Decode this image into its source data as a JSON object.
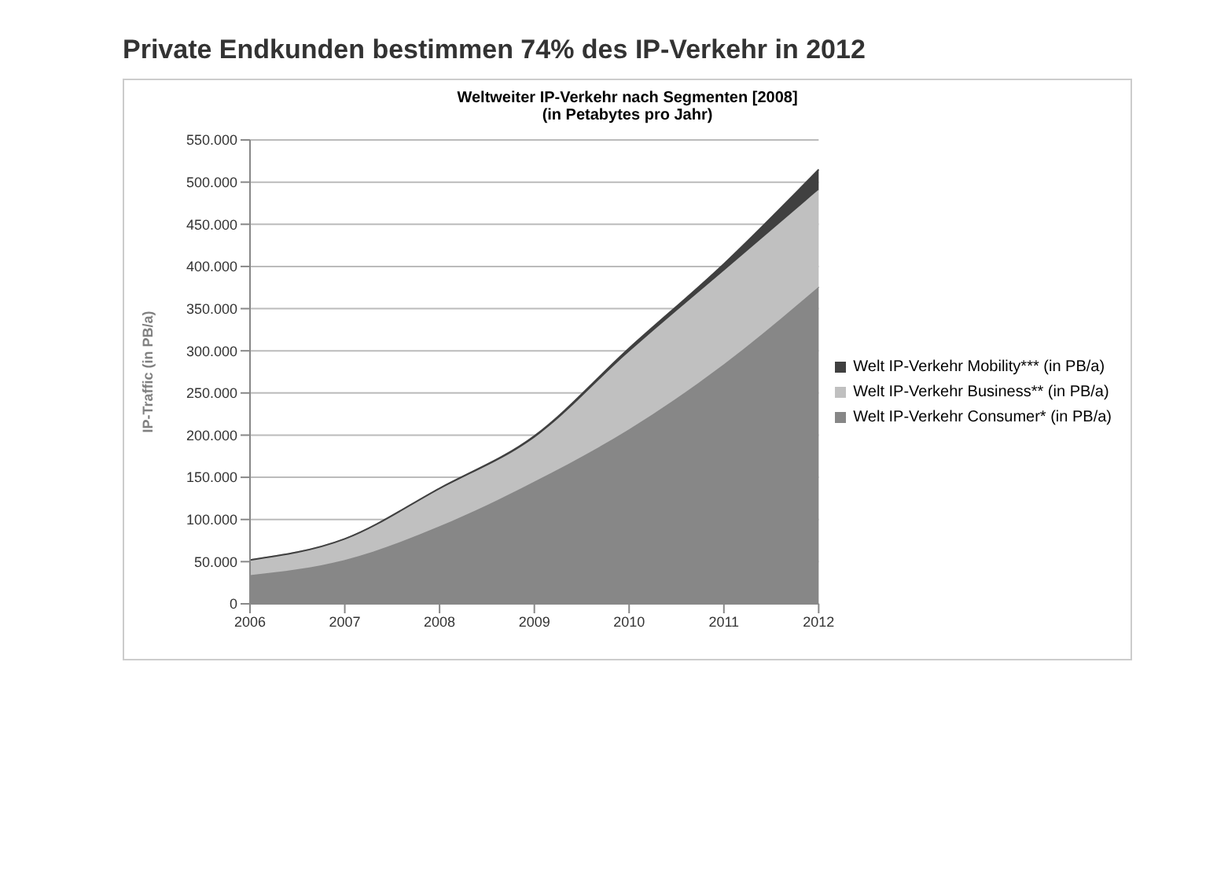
{
  "chart_data": {
    "type": "area",
    "stacked": true,
    "title": "Private Endkunden bestimmen 74% des IP-Verkehr in 2012",
    "subtitle": "Weltweiter IP-Verkehr nach Segmenten [2008]\n(in Petabytes pro Jahr)",
    "ylabel": "IP-Traffic (in PB/a)",
    "categories": [
      "2006",
      "2007",
      "2008",
      "2009",
      "2010",
      "2011",
      "2012"
    ],
    "series": [
      {
        "name": "Welt IP-Verkehr Consumer* (in PB/a)",
        "color": "#878787",
        "values": [
          34000,
          52000,
          92000,
          145000,
          207000,
          284000,
          376000
        ]
      },
      {
        "name": "Welt IP-Verkehr Business** (in PB/a)",
        "color": "#c0c0c0",
        "values": [
          18000,
          25000,
          44000,
          52000,
          92000,
          111000,
          115000
        ]
      },
      {
        "name": "Welt IP-Verkehr Mobility*** (in PB/a)",
        "color": "#404040",
        "values": [
          0,
          0,
          1000,
          2000,
          4000,
          8000,
          24000
        ]
      }
    ],
    "ylim": [
      0,
      550000
    ],
    "yticks": [
      0,
      {
        "value": 50000,
        "label": "50.000"
      },
      {
        "value": 100000,
        "label": "100.000"
      },
      {
        "value": 150000,
        "label": "150.000"
      },
      {
        "value": 200000,
        "label": "200.000"
      },
      {
        "value": 250000,
        "label": "250.000"
      },
      {
        "value": 300000,
        "label": "300.000"
      },
      {
        "value": 350000,
        "label": "350.000"
      },
      {
        "value": 400000,
        "label": "400.000"
      },
      {
        "value": 450000,
        "label": "450.000"
      },
      {
        "value": 500000,
        "label": "500.000"
      },
      {
        "value": 550000,
        "label": "550.000"
      }
    ],
    "grid": "y",
    "legend": "right"
  }
}
